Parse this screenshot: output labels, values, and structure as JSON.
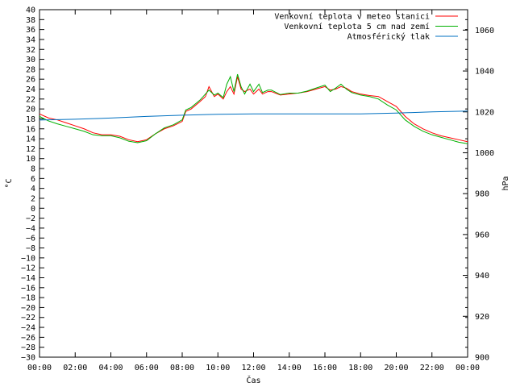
{
  "chart_data": {
    "type": "line",
    "title": "",
    "xlabel": "Čas",
    "ylabel_left": "°C",
    "ylabel_right": "hPa",
    "x_ticks": [
      "00:00",
      "02:00",
      "04:00",
      "06:00",
      "08:00",
      "10:00",
      "12:00",
      "14:00",
      "16:00",
      "18:00",
      "20:00",
      "22:00",
      "00:00"
    ],
    "x_range_hours": [
      0,
      24
    ],
    "ylim_left": [
      -30,
      40
    ],
    "y_left_step": 2,
    "ylim_right": [
      900,
      1070
    ],
    "y_right_ticks": [
      900,
      920,
      940,
      960,
      980,
      1000,
      1020,
      1040,
      1060
    ],
    "legend_position": "top-right",
    "grid": false,
    "series": [
      {
        "name": "Venkovní teplota v meteo stanici",
        "color": "#ff0000",
        "axis": "left",
        "points": [
          [
            0,
            19
          ],
          [
            0.5,
            18.2
          ],
          [
            1,
            17.8
          ],
          [
            1.5,
            17.2
          ],
          [
            2,
            16.6
          ],
          [
            2.5,
            16
          ],
          [
            3,
            15.2
          ],
          [
            3.5,
            14.8
          ],
          [
            4,
            14.8
          ],
          [
            4.5,
            14.5
          ],
          [
            5,
            13.8
          ],
          [
            5.5,
            13.4
          ],
          [
            6,
            13.8
          ],
          [
            6.5,
            15
          ],
          [
            7,
            16
          ],
          [
            7.5,
            16.6
          ],
          [
            8,
            17.5
          ],
          [
            8.2,
            19.5
          ],
          [
            8.5,
            20
          ],
          [
            9,
            21.5
          ],
          [
            9.3,
            22.5
          ],
          [
            9.5,
            24.5
          ],
          [
            9.8,
            22.5
          ],
          [
            10,
            23
          ],
          [
            10.3,
            22
          ],
          [
            10.5,
            23.5
          ],
          [
            10.7,
            24.5
          ],
          [
            10.9,
            23
          ],
          [
            11.1,
            26.5
          ],
          [
            11.3,
            24
          ],
          [
            11.5,
            23.5
          ],
          [
            11.8,
            24
          ],
          [
            12,
            23
          ],
          [
            12.3,
            24
          ],
          [
            12.5,
            23
          ],
          [
            12.8,
            23.5
          ],
          [
            13,
            23.5
          ],
          [
            13.5,
            22.8
          ],
          [
            14,
            23
          ],
          [
            14.5,
            23.2
          ],
          [
            15,
            23.5
          ],
          [
            15.5,
            24
          ],
          [
            16,
            24.5
          ],
          [
            16.3,
            23.8
          ],
          [
            16.6,
            24
          ],
          [
            16.9,
            24.5
          ],
          [
            17.2,
            24.2
          ],
          [
            17.5,
            23.5
          ],
          [
            18,
            23
          ],
          [
            18.5,
            22.7
          ],
          [
            19,
            22.5
          ],
          [
            19.5,
            21.5
          ],
          [
            20,
            20.5
          ],
          [
            20.5,
            18.5
          ],
          [
            21,
            17
          ],
          [
            21.5,
            16
          ],
          [
            22,
            15.2
          ],
          [
            22.5,
            14.6
          ],
          [
            23,
            14.2
          ],
          [
            23.5,
            13.8
          ],
          [
            24,
            13.4
          ]
        ]
      },
      {
        "name": "Venkovní teplota 5 cm nad zemí",
        "color": "#00b000",
        "axis": "left",
        "points": [
          [
            0,
            18.5
          ],
          [
            0.5,
            17.6
          ],
          [
            1,
            17
          ],
          [
            1.5,
            16.5
          ],
          [
            2,
            16
          ],
          [
            2.5,
            15.5
          ],
          [
            3,
            14.8
          ],
          [
            3.5,
            14.6
          ],
          [
            4,
            14.6
          ],
          [
            4.5,
            14.2
          ],
          [
            5,
            13.5
          ],
          [
            5.5,
            13.2
          ],
          [
            6,
            13.6
          ],
          [
            6.5,
            15
          ],
          [
            7,
            16.2
          ],
          [
            7.5,
            16.8
          ],
          [
            8,
            17.8
          ],
          [
            8.2,
            19.8
          ],
          [
            8.5,
            20.3
          ],
          [
            9,
            21.8
          ],
          [
            9.3,
            23
          ],
          [
            9.5,
            23.8
          ],
          [
            9.8,
            22.8
          ],
          [
            10,
            23.2
          ],
          [
            10.3,
            22.3
          ],
          [
            10.5,
            25
          ],
          [
            10.7,
            26.5
          ],
          [
            10.9,
            23.5
          ],
          [
            11.1,
            27
          ],
          [
            11.3,
            24.5
          ],
          [
            11.5,
            23
          ],
          [
            11.8,
            25
          ],
          [
            12,
            23.5
          ],
          [
            12.3,
            25
          ],
          [
            12.5,
            23.3
          ],
          [
            12.8,
            23.8
          ],
          [
            13,
            23.8
          ],
          [
            13.5,
            22.9
          ],
          [
            14,
            23.2
          ],
          [
            14.5,
            23.2
          ],
          [
            15,
            23.6
          ],
          [
            15.5,
            24.2
          ],
          [
            16,
            24.8
          ],
          [
            16.3,
            23.5
          ],
          [
            16.6,
            24.2
          ],
          [
            16.9,
            25
          ],
          [
            17.2,
            24
          ],
          [
            17.5,
            23.3
          ],
          [
            18,
            22.8
          ],
          [
            18.5,
            22.5
          ],
          [
            19,
            22
          ],
          [
            19.5,
            20.8
          ],
          [
            20,
            19.8
          ],
          [
            20.5,
            17.8
          ],
          [
            21,
            16.5
          ],
          [
            21.5,
            15.5
          ],
          [
            22,
            14.8
          ],
          [
            22.5,
            14.3
          ],
          [
            23,
            13.8
          ],
          [
            23.5,
            13.3
          ],
          [
            24,
            13
          ]
        ]
      },
      {
        "name": "Atmosférický tlak",
        "color": "#0070c0",
        "axis": "right",
        "points": [
          [
            0,
            1016
          ],
          [
            2,
            1016.4
          ],
          [
            4,
            1017
          ],
          [
            6,
            1017.8
          ],
          [
            8,
            1018.4
          ],
          [
            10,
            1018.8
          ],
          [
            12,
            1019
          ],
          [
            14,
            1019
          ],
          [
            16,
            1019
          ],
          [
            18,
            1019
          ],
          [
            20,
            1019.4
          ],
          [
            22,
            1020
          ],
          [
            24,
            1020.4
          ]
        ]
      }
    ]
  }
}
